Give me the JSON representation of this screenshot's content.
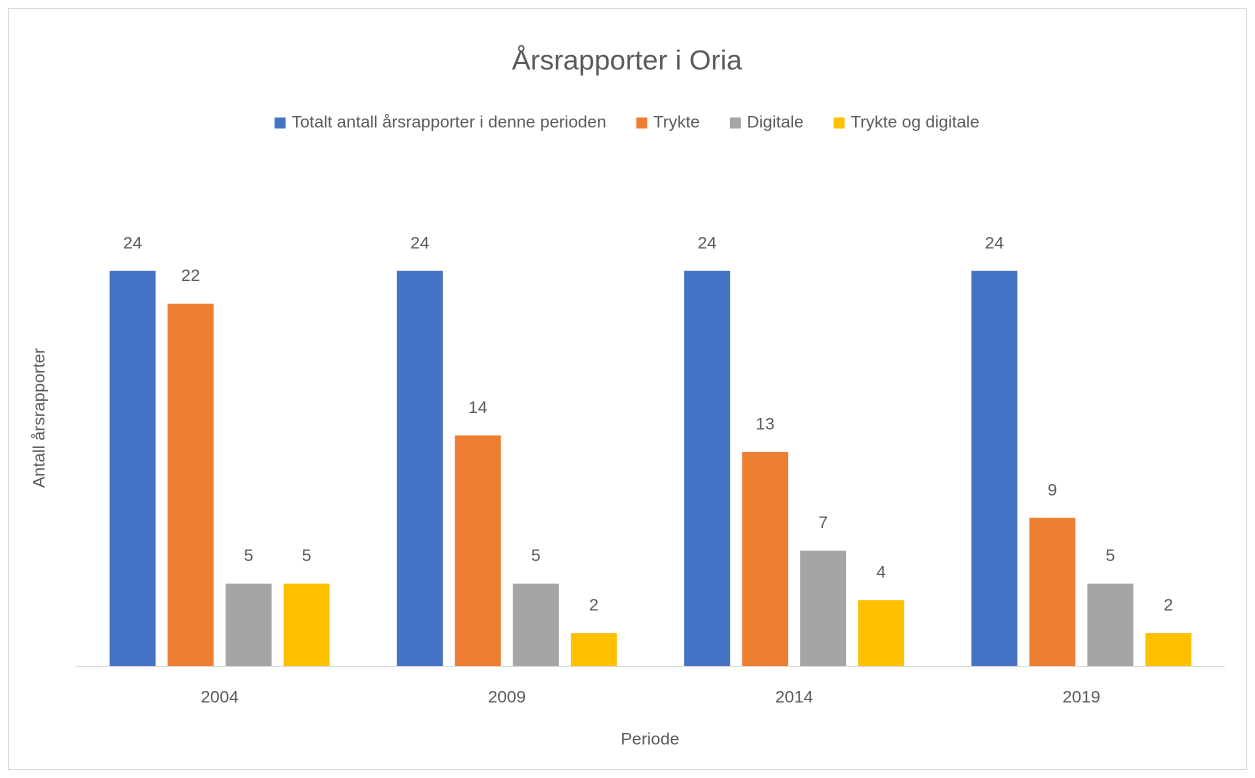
{
  "chart_data": {
    "type": "bar",
    "title": "Årsrapporter i Oria",
    "xlabel": "Periode",
    "ylabel": "Antall årsrapporter",
    "categories": [
      "2004",
      "2009",
      "2014",
      "2019"
    ],
    "series": [
      {
        "name": "Totalt antall årsrapporter i denne perioden",
        "color": "#4472c4",
        "values": [
          24,
          24,
          24,
          24
        ]
      },
      {
        "name": "Trykte",
        "color": "#ed7d31",
        "values": [
          22,
          14,
          13,
          9
        ]
      },
      {
        "name": "Digitale",
        "color": "#a5a5a5",
        "values": [
          5,
          5,
          7,
          5
        ]
      },
      {
        "name": "Trykte og digitale",
        "color": "#ffc000",
        "values": [
          5,
          2,
          4,
          2
        ]
      }
    ],
    "ylim": [
      0,
      30
    ],
    "legend": "top"
  }
}
